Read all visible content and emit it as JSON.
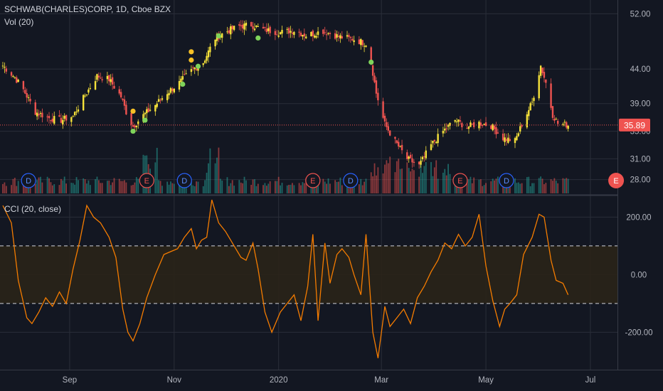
{
  "legend": {
    "symbol": "SCHWAB(CHARLES)CORP, 1D, Cboe BZX",
    "volume": "Vol (20)",
    "cci": "CCI (20, close)"
  },
  "colors": {
    "background": "#131722",
    "grid": "#2a2e39",
    "candle_down": "#ef5350",
    "candle_up": "#f6e23a",
    "volume_up": "#26a69a",
    "volume_down": "#ef5350",
    "cci_line": "#f57c00",
    "price_line": "#ef5350",
    "dividend_marker": "#2962ff",
    "earnings_marker": "#ef5350"
  },
  "chart_data": [
    {
      "type": "candlestick",
      "ylim": [
        26,
        54
      ],
      "price_axis_labels": [
        "52.00",
        "44.00",
        "39.00",
        "35.00",
        "31.00",
        "28.00"
      ],
      "time_axis_labels": [
        "Sep",
        "Nov",
        "2020",
        "Mar",
        "May",
        "Jul"
      ],
      "last_price": 35.89,
      "last_price_label": "35.89",
      "close_path": [
        [
          "2019-07-24",
          44.5
        ],
        [
          "2019-07-31",
          42.8
        ],
        [
          "2019-08-05",
          41.0
        ],
        [
          "2019-08-12",
          37.8
        ],
        [
          "2019-08-20",
          36.9
        ],
        [
          "2019-08-27",
          36.6
        ],
        [
          "2019-09-03",
          37.2
        ],
        [
          "2019-09-10",
          40.2
        ],
        [
          "2019-09-17",
          43.0
        ],
        [
          "2019-09-24",
          42.5
        ],
        [
          "2019-10-01",
          40.0
        ],
        [
          "2019-10-04",
          37.8
        ],
        [
          "2019-10-08",
          35.7
        ],
        [
          "2019-10-14",
          37.3
        ],
        [
          "2019-10-21",
          38.8
        ],
        [
          "2019-10-28",
          40.6
        ],
        [
          "2019-11-04",
          42.0
        ],
        [
          "2019-11-12",
          44.0
        ],
        [
          "2019-11-18",
          45.0
        ],
        [
          "2019-11-25",
          48.5
        ],
        [
          "2019-12-02",
          49.5
        ],
        [
          "2019-12-09",
          50.2
        ],
        [
          "2019-12-16",
          50.4
        ],
        [
          "2019-12-23",
          49.7
        ],
        [
          "2020-01-02",
          49.3
        ],
        [
          "2020-01-10",
          49.6
        ],
        [
          "2020-01-17",
          48.9
        ],
        [
          "2020-01-27",
          49.5
        ],
        [
          "2020-02-05",
          48.7
        ],
        [
          "2020-02-14",
          48.3
        ],
        [
          "2020-02-21",
          47.7
        ],
        [
          "2020-02-24",
          45.0
        ],
        [
          "2020-02-27",
          40.5
        ],
        [
          "2020-03-03",
          36.0
        ],
        [
          "2020-03-09",
          33.5
        ],
        [
          "2020-03-16",
          31.0
        ],
        [
          "2020-03-23",
          30.0
        ],
        [
          "2020-03-30",
          33.0
        ],
        [
          "2020-04-06",
          35.0
        ],
        [
          "2020-04-13",
          36.6
        ],
        [
          "2020-04-20",
          35.6
        ],
        [
          "2020-04-27",
          36.2
        ],
        [
          "2020-05-04",
          35.8
        ],
        [
          "2020-05-11",
          34.0
        ],
        [
          "2020-05-18",
          33.6
        ],
        [
          "2020-05-22",
          36.0
        ],
        [
          "2020-05-28",
          39.2
        ],
        [
          "2020-06-02",
          44.5
        ],
        [
          "2020-06-05",
          42.0
        ],
        [
          "2020-06-09",
          37.4
        ],
        [
          "2020-06-12",
          36.1
        ],
        [
          "2020-06-18",
          35.89
        ]
      ],
      "pivot_dots": [
        {
          "date": "2019-10-08",
          "price": 35.0,
          "kind": "low"
        },
        {
          "date": "2019-10-08",
          "price": 37.9,
          "kind": "high"
        },
        {
          "date": "2019-10-15",
          "price": 36.6,
          "kind": "low"
        },
        {
          "date": "2019-11-06",
          "price": 41.8,
          "kind": "low"
        },
        {
          "date": "2019-11-11",
          "price": 46.5,
          "kind": "high"
        },
        {
          "date": "2019-11-11",
          "price": 45.3,
          "kind": "high"
        },
        {
          "date": "2019-11-15",
          "price": 44.4,
          "kind": "low"
        },
        {
          "date": "2019-11-27",
          "price": 48.8,
          "kind": "low"
        },
        {
          "date": "2019-12-20",
          "price": 48.5,
          "kind": "low"
        },
        {
          "date": "2020-02-24",
          "price": 45.0,
          "kind": "low"
        }
      ],
      "events": [
        {
          "date": "2019-08-08",
          "label": "D",
          "kind": "dividend"
        },
        {
          "date": "2019-10-16",
          "label": "E",
          "kind": "earnings"
        },
        {
          "date": "2019-11-07",
          "label": "D",
          "kind": "dividend"
        },
        {
          "date": "2020-01-21",
          "label": "E",
          "kind": "earnings"
        },
        {
          "date": "2020-02-12",
          "label": "D",
          "kind": "dividend"
        },
        {
          "date": "2020-04-16",
          "label": "E",
          "kind": "earnings"
        },
        {
          "date": "2020-05-13",
          "label": "D",
          "kind": "dividend"
        },
        {
          "date": "2020-07-16",
          "label": "E",
          "kind": "earnings"
        }
      ]
    },
    {
      "type": "line",
      "name": "CCI (20, close)",
      "ylim": [
        -330,
        270
      ],
      "y_axis_labels": [
        "200.00",
        "0.00",
        "-200.00"
      ],
      "bands": [
        100,
        -100
      ],
      "points": [
        [
          "2019-07-24",
          240
        ],
        [
          "2019-07-29",
          180
        ],
        [
          "2019-08-02",
          -20
        ],
        [
          "2019-08-07",
          -150
        ],
        [
          "2019-08-10",
          -170
        ],
        [
          "2019-08-14",
          -130
        ],
        [
          "2019-08-18",
          -80
        ],
        [
          "2019-08-22",
          -110
        ],
        [
          "2019-08-26",
          -60
        ],
        [
          "2019-08-30",
          -100
        ],
        [
          "2019-09-03",
          20
        ],
        [
          "2019-09-07",
          120
        ],
        [
          "2019-09-11",
          240
        ],
        [
          "2019-09-15",
          200
        ],
        [
          "2019-09-19",
          180
        ],
        [
          "2019-09-24",
          130
        ],
        [
          "2019-09-28",
          60
        ],
        [
          "2019-10-02",
          -120
        ],
        [
          "2019-10-05",
          -200
        ],
        [
          "2019-10-08",
          -230
        ],
        [
          "2019-10-12",
          -170
        ],
        [
          "2019-10-16",
          -80
        ],
        [
          "2019-10-21",
          0
        ],
        [
          "2019-10-26",
          70
        ],
        [
          "2019-10-30",
          80
        ],
        [
          "2019-11-03",
          90
        ],
        [
          "2019-11-07",
          130
        ],
        [
          "2019-11-11",
          160
        ],
        [
          "2019-11-14",
          90
        ],
        [
          "2019-11-17",
          120
        ],
        [
          "2019-11-20",
          130
        ],
        [
          "2019-11-23",
          260
        ],
        [
          "2019-11-27",
          180
        ],
        [
          "2019-12-01",
          150
        ],
        [
          "2019-12-04",
          120
        ],
        [
          "2019-12-07",
          90
        ],
        [
          "2019-12-10",
          60
        ],
        [
          "2019-12-13",
          50
        ],
        [
          "2019-12-17",
          110
        ],
        [
          "2019-12-20",
          20
        ],
        [
          "2019-12-24",
          -130
        ],
        [
          "2019-12-28",
          -200
        ],
        [
          "2020-01-02",
          -130
        ],
        [
          "2020-01-06",
          -100
        ],
        [
          "2020-01-10",
          -70
        ],
        [
          "2020-01-14",
          -160
        ],
        [
          "2020-01-18",
          -40
        ],
        [
          "2020-01-21",
          140
        ],
        [
          "2020-01-24",
          -160
        ],
        [
          "2020-01-28",
          110
        ],
        [
          "2020-01-31",
          -30
        ],
        [
          "2020-02-04",
          70
        ],
        [
          "2020-02-07",
          90
        ],
        [
          "2020-02-11",
          60
        ],
        [
          "2020-02-14",
          0
        ],
        [
          "2020-02-18",
          -70
        ],
        [
          "2020-02-21",
          140
        ],
        [
          "2020-02-25",
          -200
        ],
        [
          "2020-02-28",
          -290
        ],
        [
          "2020-03-03",
          -110
        ],
        [
          "2020-03-06",
          -180
        ],
        [
          "2020-03-10",
          -150
        ],
        [
          "2020-03-14",
          -120
        ],
        [
          "2020-03-18",
          -170
        ],
        [
          "2020-03-22",
          -80
        ],
        [
          "2020-03-26",
          -40
        ],
        [
          "2020-03-30",
          10
        ],
        [
          "2020-04-03",
          50
        ],
        [
          "2020-04-07",
          110
        ],
        [
          "2020-04-11",
          90
        ],
        [
          "2020-04-15",
          140
        ],
        [
          "2020-04-19",
          100
        ],
        [
          "2020-04-23",
          130
        ],
        [
          "2020-04-27",
          210
        ],
        [
          "2020-05-01",
          30
        ],
        [
          "2020-05-05",
          -90
        ],
        [
          "2020-05-09",
          -180
        ],
        [
          "2020-05-12",
          -120
        ],
        [
          "2020-05-15",
          -100
        ],
        [
          "2020-05-19",
          -70
        ],
        [
          "2020-05-23",
          70
        ],
        [
          "2020-05-28",
          130
        ],
        [
          "2020-06-01",
          210
        ],
        [
          "2020-06-04",
          200
        ],
        [
          "2020-06-08",
          50
        ],
        [
          "2020-06-11",
          -20
        ],
        [
          "2020-06-15",
          -30
        ],
        [
          "2020-06-18",
          -70
        ]
      ]
    }
  ]
}
